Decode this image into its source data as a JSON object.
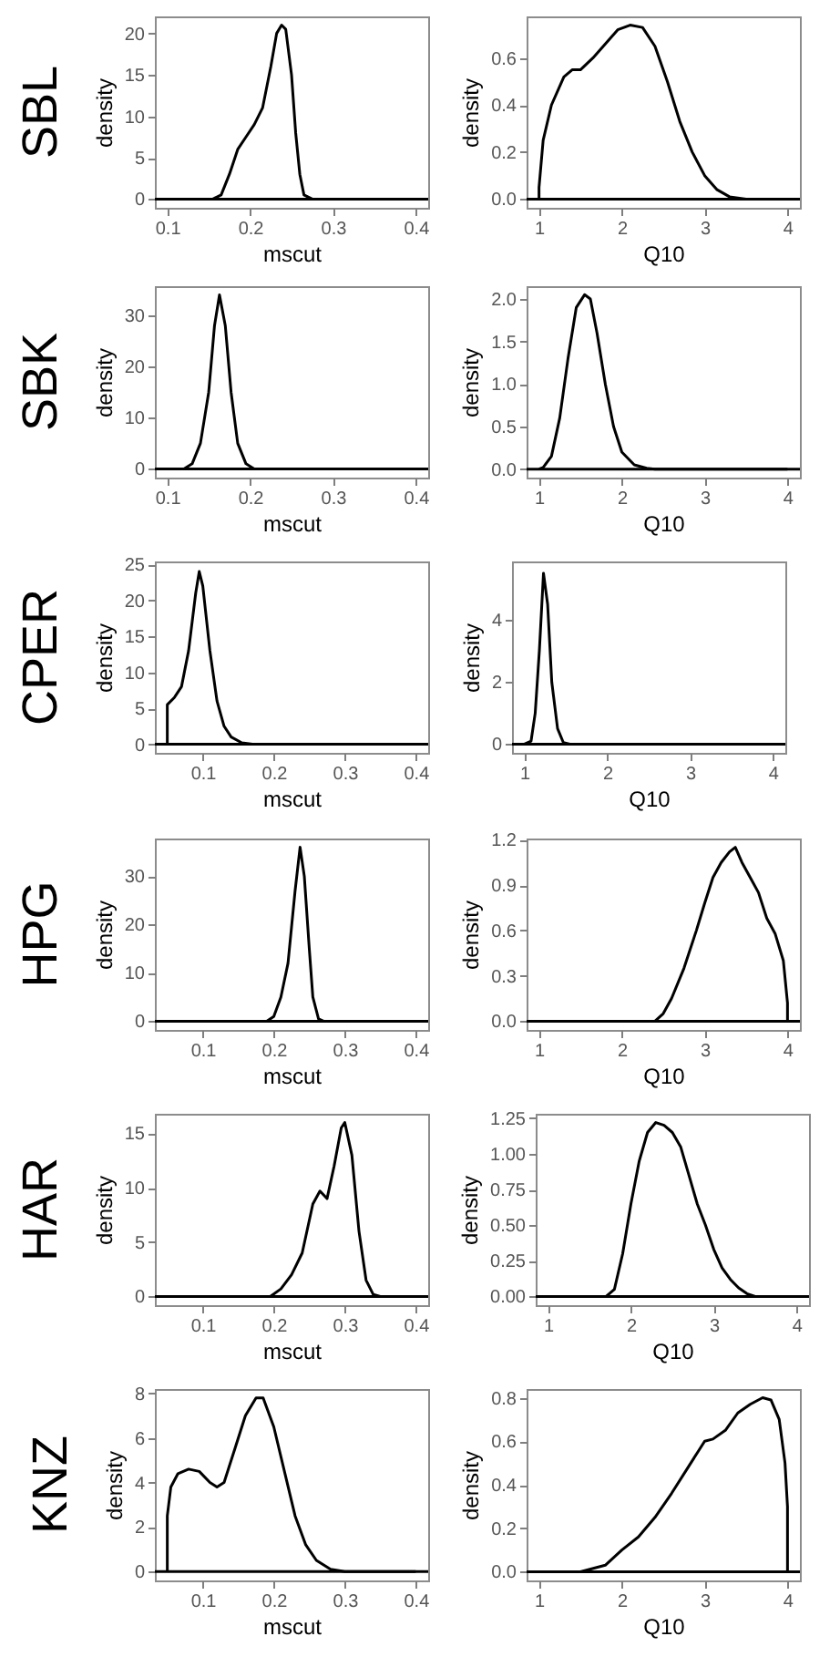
{
  "chart_data": [
    {
      "type": "line",
      "title": "SBL",
      "xlabel": "mscut",
      "ylabel": "density",
      "color": "#000000",
      "xlim": [
        0.085,
        0.415
      ],
      "xticks": [
        0.1,
        0.2,
        0.3,
        0.4
      ],
      "ylim": [
        -1.05,
        22.05
      ],
      "yticks": [
        0,
        5,
        10,
        15,
        20
      ],
      "ref_lines": [
        {
          "axis": "y",
          "value": 0
        }
      ],
      "x": [
        0.1,
        0.155,
        0.165,
        0.175,
        0.185,
        0.195,
        0.205,
        0.215,
        0.225,
        0.232,
        0.238,
        0.243,
        0.25,
        0.255,
        0.26,
        0.265,
        0.275,
        0.4
      ],
      "values": [
        0,
        0,
        0.5,
        3,
        6,
        7.5,
        9,
        11,
        16,
        20,
        21,
        20.5,
        15,
        8,
        3,
        0.5,
        0,
        0
      ]
    },
    {
      "type": "line",
      "xlabel": "Q10",
      "ylabel": "density",
      "color": "#000000",
      "xlim": [
        0.85,
        4.15
      ],
      "xticks": [
        1,
        2,
        3,
        4
      ],
      "ylim": [
        -0.037,
        0.777
      ],
      "yticks": [
        {
          "value": 0,
          "label": "0.0"
        },
        0.2,
        0.4,
        0.6
      ],
      "ref_lines": [
        {
          "axis": "y",
          "value": 0
        }
      ],
      "x": [
        1,
        1,
        1.05,
        1.15,
        1.3,
        1.4,
        1.5,
        1.65,
        1.8,
        1.95,
        2.1,
        2.25,
        2.4,
        2.55,
        2.7,
        2.85,
        3.0,
        3.15,
        3.3,
        3.5,
        4
      ],
      "values": [
        0,
        0.05,
        0.25,
        0.4,
        0.52,
        0.55,
        0.55,
        0.6,
        0.66,
        0.72,
        0.74,
        0.73,
        0.65,
        0.5,
        0.33,
        0.2,
        0.1,
        0.04,
        0.01,
        0,
        0
      ]
    },
    {
      "type": "line",
      "title": "SBK",
      "xlabel": "mscut",
      "ylabel": "density",
      "color": "#000000",
      "xlim": [
        0.085,
        0.415
      ],
      "xticks": [
        0.1,
        0.2,
        0.3,
        0.4
      ],
      "ylim": [
        -1.7,
        35.7
      ],
      "yticks": [
        0,
        10,
        20,
        30
      ],
      "ref_lines": [
        {
          "axis": "y",
          "value": 0
        }
      ],
      "x": [
        0.1,
        0.12,
        0.13,
        0.14,
        0.15,
        0.157,
        0.163,
        0.17,
        0.177,
        0.185,
        0.195,
        0.205,
        0.4
      ],
      "values": [
        0,
        0,
        1,
        5,
        15,
        28,
        34,
        28,
        15,
        5,
        1,
        0,
        0
      ]
    },
    {
      "type": "line",
      "xlabel": "Q10",
      "ylabel": "density",
      "color": "#000000",
      "xlim": [
        0.85,
        4.15
      ],
      "xticks": [
        1,
        2,
        3,
        4
      ],
      "ylim": [
        -0.1,
        2.15
      ],
      "yticks": [
        {
          "value": 0,
          "label": "0.0"
        },
        0.5,
        {
          "value": 1,
          "label": "1.0"
        },
        1.5,
        {
          "value": 2,
          "label": "2.0"
        }
      ],
      "ref_lines": [
        {
          "axis": "y",
          "value": 0
        }
      ],
      "x": [
        1,
        1.05,
        1.15,
        1.25,
        1.35,
        1.45,
        1.55,
        1.62,
        1.7,
        1.8,
        1.9,
        2.0,
        2.15,
        2.3,
        2.4,
        4
      ],
      "values": [
        0,
        0.02,
        0.15,
        0.6,
        1.3,
        1.9,
        2.05,
        2.0,
        1.6,
        1.0,
        0.5,
        0.2,
        0.05,
        0.01,
        0,
        0
      ]
    },
    {
      "type": "line",
      "title": "CPER",
      "xlabel": "mscut",
      "ylabel": "density",
      "color": "#000000",
      "xlim": [
        0.0325,
        0.4175
      ],
      "xticks": [
        0.1,
        0.2,
        0.3,
        0.4
      ],
      "ylim": [
        -1.2,
        25.4
      ],
      "yticks": [
        0,
        5,
        10,
        15,
        20,
        25
      ],
      "ref_lines": [
        {
          "axis": "y",
          "value": 0
        }
      ],
      "x": [
        0.05,
        0.05,
        0.06,
        0.07,
        0.08,
        0.09,
        0.095,
        0.1,
        0.11,
        0.12,
        0.13,
        0.14,
        0.155,
        0.17,
        0.4
      ],
      "values": [
        0,
        5.5,
        6.5,
        8,
        13,
        21,
        24,
        22,
        13,
        6,
        2.5,
        1,
        0.2,
        0,
        0
      ]
    },
    {
      "type": "line",
      "xlabel": "Q10",
      "ylabel": "density",
      "color": "#000000",
      "xlim": [
        0.85,
        4.15
      ],
      "xticks": [
        1,
        2,
        3,
        4
      ],
      "ylim": [
        -0.28,
        5.88
      ],
      "yticks": [
        0,
        2,
        4
      ],
      "ref_lines": [
        {
          "axis": "y",
          "value": 0
        }
      ],
      "x": [
        1,
        1.08,
        1.13,
        1.18,
        1.23,
        1.28,
        1.33,
        1.4,
        1.47,
        1.55,
        4
      ],
      "values": [
        0,
        0.1,
        1,
        3,
        5.5,
        4.5,
        2,
        0.5,
        0.05,
        0,
        0
      ]
    },
    {
      "type": "line",
      "title": "HPG",
      "xlabel": "mscut",
      "ylabel": "density",
      "color": "#000000",
      "xlim": [
        0.0325,
        0.4175
      ],
      "xticks": [
        0.1,
        0.2,
        0.3,
        0.4
      ],
      "ylim": [
        -1.8,
        37.8
      ],
      "yticks": [
        0,
        10,
        20,
        30
      ],
      "ref_lines": [
        {
          "axis": "y",
          "value": 0
        }
      ],
      "x": [
        0.05,
        0.19,
        0.2,
        0.21,
        0.22,
        0.23,
        0.237,
        0.243,
        0.25,
        0.255,
        0.263,
        0.27,
        0.4
      ],
      "values": [
        0,
        0,
        1,
        5,
        12,
        27,
        36,
        30,
        15,
        5,
        0.5,
        0,
        0
      ]
    },
    {
      "type": "line",
      "xlabel": "Q10",
      "ylabel": "density",
      "color": "#000000",
      "xlim": [
        0.85,
        4.15
      ],
      "xticks": [
        1,
        2,
        3,
        4
      ],
      "ylim": [
        -0.058,
        1.208
      ],
      "yticks": [
        {
          "value": 0,
          "label": "0.0"
        },
        0.3,
        0.6,
        0.9,
        1.2
      ],
      "ref_lines": [
        {
          "axis": "y",
          "value": 0
        }
      ],
      "x": [
        1,
        2.4,
        2.5,
        2.6,
        2.75,
        2.9,
        3.0,
        3.1,
        3.2,
        3.3,
        3.37,
        3.45,
        3.55,
        3.65,
        3.75,
        3.85,
        3.95,
        4.0,
        4.0
      ],
      "values": [
        0,
        0,
        0.05,
        0.15,
        0.35,
        0.6,
        0.78,
        0.95,
        1.05,
        1.12,
        1.15,
        1.05,
        0.95,
        0.85,
        0.68,
        0.58,
        0.4,
        0.12,
        0
      ]
    },
    {
      "type": "line",
      "title": "HAR",
      "xlabel": "mscut",
      "ylabel": "density",
      "color": "#000000",
      "xlim": [
        0.0325,
        0.4175
      ],
      "xticks": [
        0.1,
        0.2,
        0.3,
        0.4
      ],
      "ylim": [
        -0.8,
        16.8
      ],
      "yticks": [
        0,
        5,
        10,
        15
      ],
      "ref_lines": [
        {
          "axis": "y",
          "value": 0
        }
      ],
      "x": [
        0.05,
        0.195,
        0.21,
        0.225,
        0.24,
        0.255,
        0.265,
        0.275,
        0.285,
        0.295,
        0.3,
        0.31,
        0.32,
        0.33,
        0.34,
        0.35,
        0.4
      ],
      "values": [
        0,
        0,
        0.7,
        2,
        4,
        8.5,
        9.7,
        9,
        12,
        15.5,
        16,
        13,
        6,
        1.5,
        0.2,
        0,
        0
      ]
    },
    {
      "type": "line",
      "xlabel": "Q10",
      "ylabel": "density",
      "color": "#000000",
      "xlim": [
        0.85,
        4.15
      ],
      "xticks": [
        1,
        2,
        3,
        4
      ],
      "ylim": [
        -0.061,
        1.281
      ],
      "yticks": [
        {
          "value": 0,
          "label": "0.00"
        },
        0.25,
        {
          "value": 0.5,
          "label": "0.50"
        },
        0.75,
        {
          "value": 1,
          "label": "1.00"
        },
        1.25
      ],
      "ref_lines": [
        {
          "axis": "y",
          "value": 0
        }
      ],
      "x": [
        1,
        1.7,
        1.8,
        1.9,
        2.0,
        2.1,
        2.2,
        2.3,
        2.4,
        2.5,
        2.6,
        2.7,
        2.8,
        2.9,
        3.0,
        3.1,
        3.2,
        3.3,
        3.4,
        3.5,
        4
      ],
      "values": [
        0,
        0,
        0.05,
        0.3,
        0.65,
        0.95,
        1.15,
        1.22,
        1.2,
        1.15,
        1.05,
        0.85,
        0.65,
        0.5,
        0.33,
        0.2,
        0.12,
        0.06,
        0.02,
        0,
        0
      ]
    },
    {
      "type": "line",
      "title": "KNZ",
      "xlabel": "mscut",
      "ylabel": "density",
      "color": "#000000",
      "xlim": [
        0.0325,
        0.4175
      ],
      "xticks": [
        0.1,
        0.2,
        0.3,
        0.4
      ],
      "ylim": [
        -0.4,
        8.2
      ],
      "yticks": [
        0,
        2,
        4,
        6,
        8
      ],
      "ref_lines": [
        {
          "axis": "y",
          "value": 0
        }
      ],
      "x": [
        0.05,
        0.05,
        0.055,
        0.065,
        0.08,
        0.095,
        0.11,
        0.12,
        0.13,
        0.145,
        0.16,
        0.175,
        0.185,
        0.2,
        0.215,
        0.23,
        0.245,
        0.26,
        0.28,
        0.3,
        0.4
      ],
      "values": [
        0,
        2.5,
        3.8,
        4.4,
        4.6,
        4.5,
        4,
        3.8,
        4,
        5.5,
        7,
        7.8,
        7.8,
        6.5,
        4.5,
        2.5,
        1.2,
        0.5,
        0.1,
        0,
        0
      ]
    },
    {
      "type": "line",
      "xlabel": "Q10",
      "ylabel": "density",
      "color": "#000000",
      "xlim": [
        0.85,
        4.15
      ],
      "xticks": [
        1,
        2,
        3,
        4
      ],
      "ylim": [
        -0.04,
        0.84
      ],
      "yticks": [
        {
          "value": 0,
          "label": "0.0"
        },
        0.2,
        0.4,
        0.6,
        0.8
      ],
      "ref_lines": [
        {
          "axis": "y",
          "value": 0
        }
      ],
      "x": [
        1,
        1.5,
        1.8,
        2.0,
        2.2,
        2.4,
        2.6,
        2.8,
        3.0,
        3.1,
        3.25,
        3.4,
        3.55,
        3.7,
        3.8,
        3.9,
        3.97,
        4.0,
        4.0
      ],
      "values": [
        0,
        0,
        0.03,
        0.1,
        0.16,
        0.25,
        0.36,
        0.48,
        0.6,
        0.61,
        0.65,
        0.73,
        0.77,
        0.8,
        0.79,
        0.7,
        0.5,
        0.3,
        0
      ]
    }
  ]
}
